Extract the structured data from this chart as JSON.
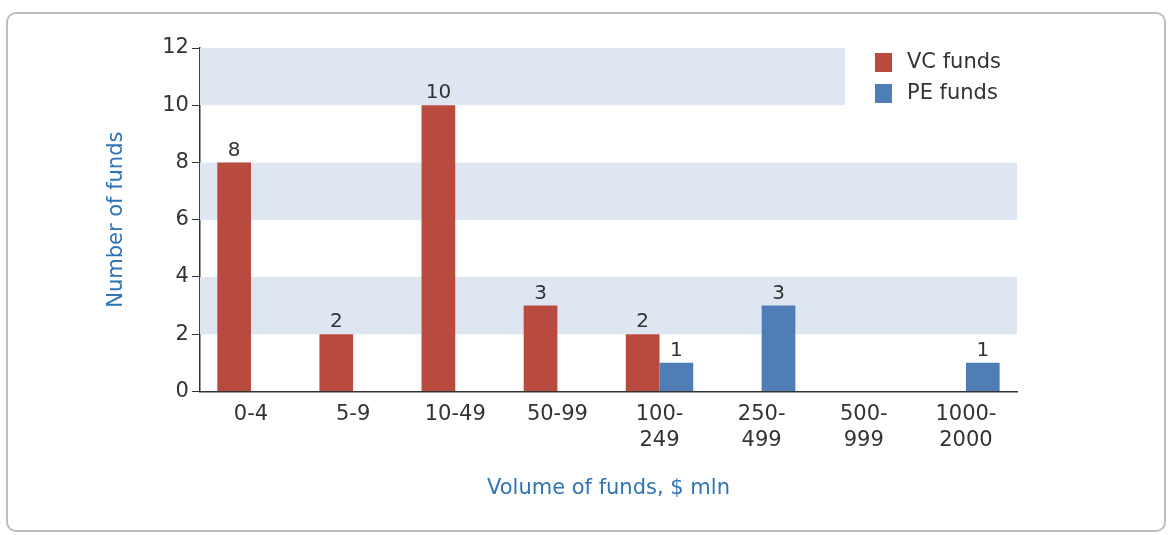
{
  "chart_data": {
    "type": "bar",
    "xlabel": "Volume of funds, $ mln",
    "ylabel": "Number of funds",
    "categories": [
      "0-4",
      "5-9",
      "10-49",
      "50-99",
      "100-249",
      "250-499",
      "500-999",
      "1000-2000"
    ],
    "series": [
      {
        "name": "VC funds",
        "color": "#b84a40",
        "values": [
          8,
          2,
          10,
          3,
          2,
          null,
          null,
          null
        ]
      },
      {
        "name": "PE funds",
        "color": "#4f7db5",
        "values": [
          null,
          null,
          null,
          null,
          1,
          3,
          null,
          1
        ]
      }
    ],
    "ylim": [
      0,
      12
    ],
    "yticks": [
      0,
      2,
      4,
      6,
      8,
      10,
      12
    ],
    "bands": [
      {
        "axis": "y",
        "from": 2,
        "to": 4,
        "color": "#dee6f2"
      },
      {
        "axis": "y",
        "from": 6,
        "to": 8,
        "color": "#dee6f2"
      },
      {
        "axis": "y",
        "from": 10,
        "to": 12,
        "color": "#dee6f2"
      }
    ],
    "grid": false,
    "legend": "top right",
    "data_labels": true
  }
}
